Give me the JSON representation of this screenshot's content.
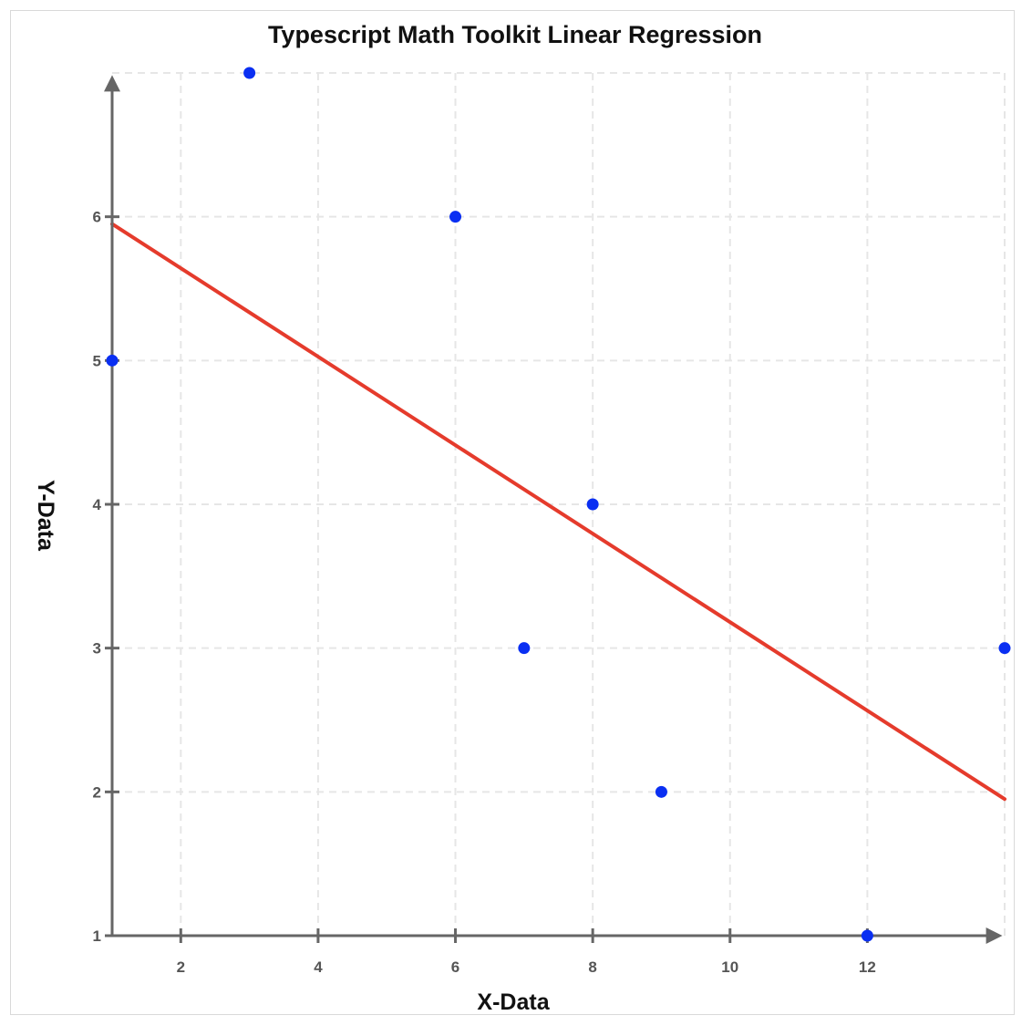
{
  "chart_data": {
    "type": "scatter",
    "title": "Typescript Math Toolkit Linear Regression",
    "xlabel": "X-Data",
    "ylabel": "Y-Data",
    "xlim": [
      1,
      14
    ],
    "ylim": [
      1,
      7
    ],
    "xticks": [
      2,
      4,
      6,
      8,
      10,
      12
    ],
    "yticks": [
      1,
      2,
      3,
      4,
      5,
      6
    ],
    "grid": true,
    "points": [
      {
        "x": 1,
        "y": 5
      },
      {
        "x": 3,
        "y": 7
      },
      {
        "x": 6,
        "y": 6
      },
      {
        "x": 7,
        "y": 3
      },
      {
        "x": 8,
        "y": 4
      },
      {
        "x": 9,
        "y": 2
      },
      {
        "x": 12,
        "y": 1
      },
      {
        "x": 14,
        "y": 3
      }
    ],
    "regression_line": {
      "x": [
        1,
        14
      ],
      "y": [
        5.95,
        1.95
      ]
    },
    "colors": {
      "points": "#0a2ff2",
      "regression_line": "#e53b2c",
      "axis": "#666666",
      "grid": "#e6e6e6"
    }
  }
}
